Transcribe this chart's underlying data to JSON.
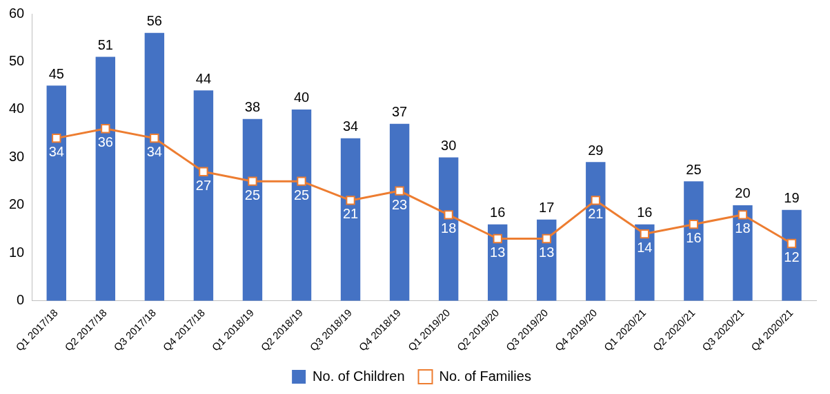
{
  "chart_data": {
    "type": "bar",
    "categories": [
      "Q1 2017/18",
      "Q2 2017/18",
      "Q3 2017/18",
      "Q4 2017/18",
      "Q1 2018/19",
      "Q2 2018/19",
      "Q3 2018/19",
      "Q4 2018/19",
      "Q1 2019/20",
      "Q2 2019/20",
      "Q3 2019/20",
      "Q4 2019/20",
      "Q1 2020/21",
      "Q2 2020/21",
      "Q3 2020/21",
      "Q4 2020/21"
    ],
    "series": [
      {
        "name": "No. of Children",
        "color": "#4472c4",
        "values": [
          45,
          51,
          56,
          44,
          38,
          40,
          34,
          37,
          30,
          16,
          17,
          29,
          16,
          25,
          20,
          19
        ]
      },
      {
        "name": "No. of Families",
        "type": "line",
        "color": "#ed7d31",
        "values": [
          34,
          36,
          34,
          27,
          25,
          25,
          21,
          23,
          18,
          13,
          13,
          21,
          14,
          16,
          18,
          12
        ]
      }
    ],
    "ylim": [
      0,
      60
    ],
    "yticks": [
      0,
      10,
      20,
      30,
      40,
      50,
      60
    ],
    "grid": false,
    "legend": "bottom",
    "marker": "square",
    "line_style": "solid",
    "data_labels": true
  }
}
